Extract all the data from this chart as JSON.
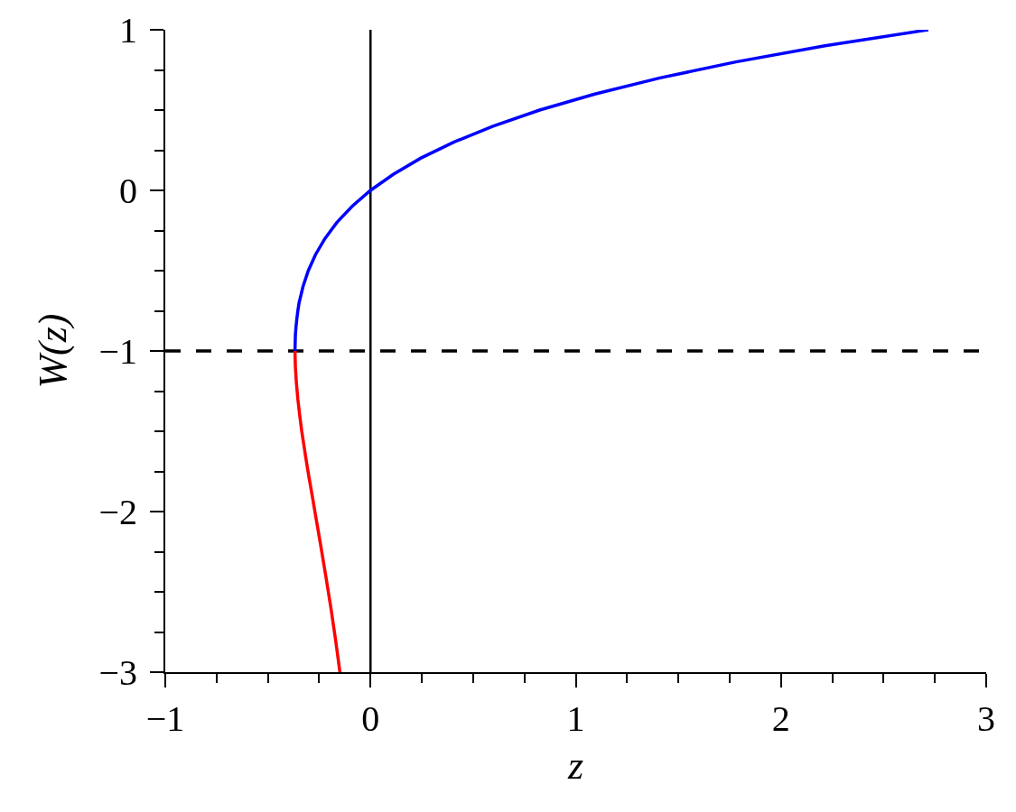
{
  "chart_data": {
    "type": "line",
    "xlabel": "z",
    "ylabel": "W(z)",
    "series": [
      {
        "color": "#0000ff",
        "x": [
          -0.368,
          -0.367,
          -0.366,
          -0.363,
          -0.359,
          -0.354,
          -0.348,
          -0.329,
          -0.303,
          -0.268,
          -0.222,
          -0.164,
          -0.09,
          0,
          0.111,
          0.244,
          0.405,
          0.597,
          0.824,
          1.093,
          1.41,
          1.78,
          2.214,
          2.718
        ],
        "values": [
          -1,
          -0.95,
          -0.9,
          -0.85,
          -0.8,
          -0.75,
          -0.7,
          -0.6,
          -0.5,
          -0.4,
          -0.3,
          -0.2,
          -0.1,
          0,
          0.1,
          0.2,
          0.3,
          0.4,
          0.5,
          0.6,
          0.7,
          0.8,
          0.9,
          1
        ]
      },
      {
        "color": "#ff0000",
        "x": [
          -0.368,
          -0.366,
          -0.361,
          -0.354,
          -0.345,
          -0.335,
          -0.323,
          -0.311,
          -0.298,
          -0.284,
          -0.271,
          -0.244,
          -0.218,
          -0.193,
          -0.17,
          -0.149
        ],
        "values": [
          -1,
          -1.1,
          -1.2,
          -1.3,
          -1.4,
          -1.5,
          -1.6,
          -1.7,
          -1.8,
          -1.9,
          -2.0,
          -2.2,
          -2.4,
          -2.6,
          -2.8,
          -3.0
        ]
      }
    ],
    "xlim": [
      -1,
      3
    ],
    "ylim": [
      -3,
      1
    ],
    "xticks": [
      -1,
      {
        "value": -0.75,
        "label": null
      },
      {
        "value": -0.5,
        "label": null
      },
      {
        "value": -0.25,
        "label": null
      },
      0,
      {
        "value": 0.25,
        "label": null
      },
      {
        "value": 0.5,
        "label": null
      },
      {
        "value": 0.75,
        "label": null
      },
      1,
      {
        "value": 1.25,
        "label": null
      },
      {
        "value": 1.5,
        "label": null
      },
      {
        "value": 1.75,
        "label": null
      },
      2,
      {
        "value": 2.25,
        "label": null
      },
      {
        "value": 2.5,
        "label": null
      },
      {
        "value": 2.75,
        "label": null
      },
      3
    ],
    "yticks": [
      -3,
      {
        "value": -2.75,
        "label": null
      },
      {
        "value": -2.5,
        "label": null
      },
      {
        "value": -2.25,
        "label": null
      },
      -2,
      {
        "value": -1.75,
        "label": null
      },
      {
        "value": -1.5,
        "label": null
      },
      {
        "value": -1.25,
        "label": null
      },
      -1,
      {
        "value": -0.75,
        "label": null
      },
      {
        "value": -0.5,
        "label": null
      },
      {
        "value": -0.25,
        "label": null
      },
      0,
      {
        "value": 0.25,
        "label": null
      },
      {
        "value": 0.5,
        "label": null
      },
      {
        "value": 0.75,
        "label": null
      },
      1
    ],
    "ref_lines": [
      {
        "axis": "x",
        "value": 0,
        "color": "#000000",
        "line_style": "solid"
      },
      {
        "axis": "y",
        "value": -1,
        "color": "#000000",
        "line_style": "dashed"
      }
    ],
    "grid": false
  }
}
